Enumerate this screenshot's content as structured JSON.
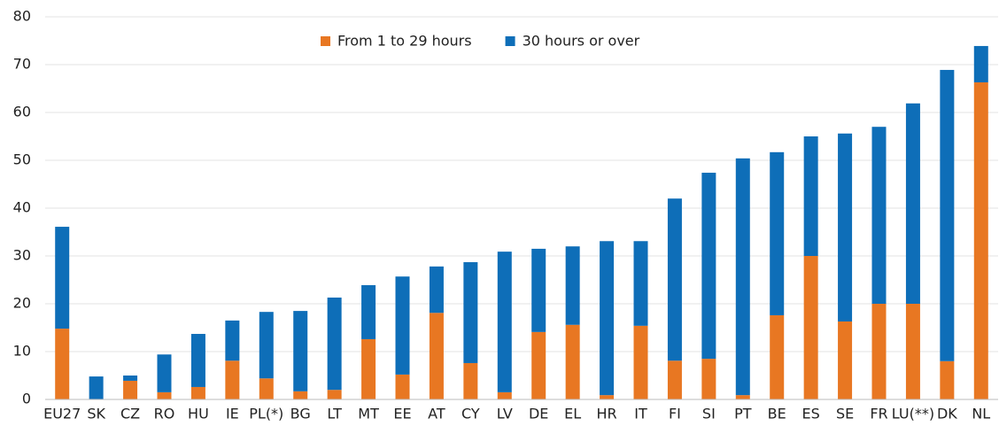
{
  "chart_data": {
    "type": "stacked_bar",
    "categories": [
      "EU27",
      "SK",
      "CZ",
      "RO",
      "HU",
      "IE",
      "PL(*)",
      "BG",
      "LT",
      "MT",
      "EE",
      "AT",
      "CY",
      "LV",
      "DE",
      "EL",
      "HR",
      "IT",
      "FI",
      "SI",
      "PT",
      "BE",
      "ES",
      "SE",
      "FR",
      "LU(**)",
      "DK",
      "NL"
    ],
    "series": [
      {
        "name": "From 1 to 29 hours",
        "color": "#e87722",
        "values": [
          14.8,
          0,
          3.9,
          1.5,
          2.6,
          8.1,
          4.4,
          1.7,
          2.0,
          12.6,
          5.2,
          18.1,
          7.6,
          1.5,
          14.1,
          15.6,
          0.9,
          15.4,
          8.1,
          8.5,
          0.9,
          17.6,
          30.0,
          16.3,
          20.0,
          20.0,
          8.0,
          66.3
        ]
      },
      {
        "name": "30 hours or over",
        "color": "#0e6eb8",
        "values": [
          21.3,
          4.8,
          1.1,
          7.9,
          11.1,
          8.4,
          13.9,
          16.8,
          19.3,
          11.3,
          20.5,
          9.7,
          21.1,
          29.4,
          17.4,
          16.4,
          32.2,
          17.7,
          33.9,
          38.9,
          49.5,
          34.1,
          25.0,
          39.3,
          37.0,
          41.9,
          60.9,
          7.6
        ]
      }
    ],
    "ylim": [
      0,
      80
    ],
    "yticks": [
      0,
      10,
      20,
      30,
      40,
      50,
      60,
      70,
      80
    ],
    "grid": true,
    "legend": "top"
  }
}
